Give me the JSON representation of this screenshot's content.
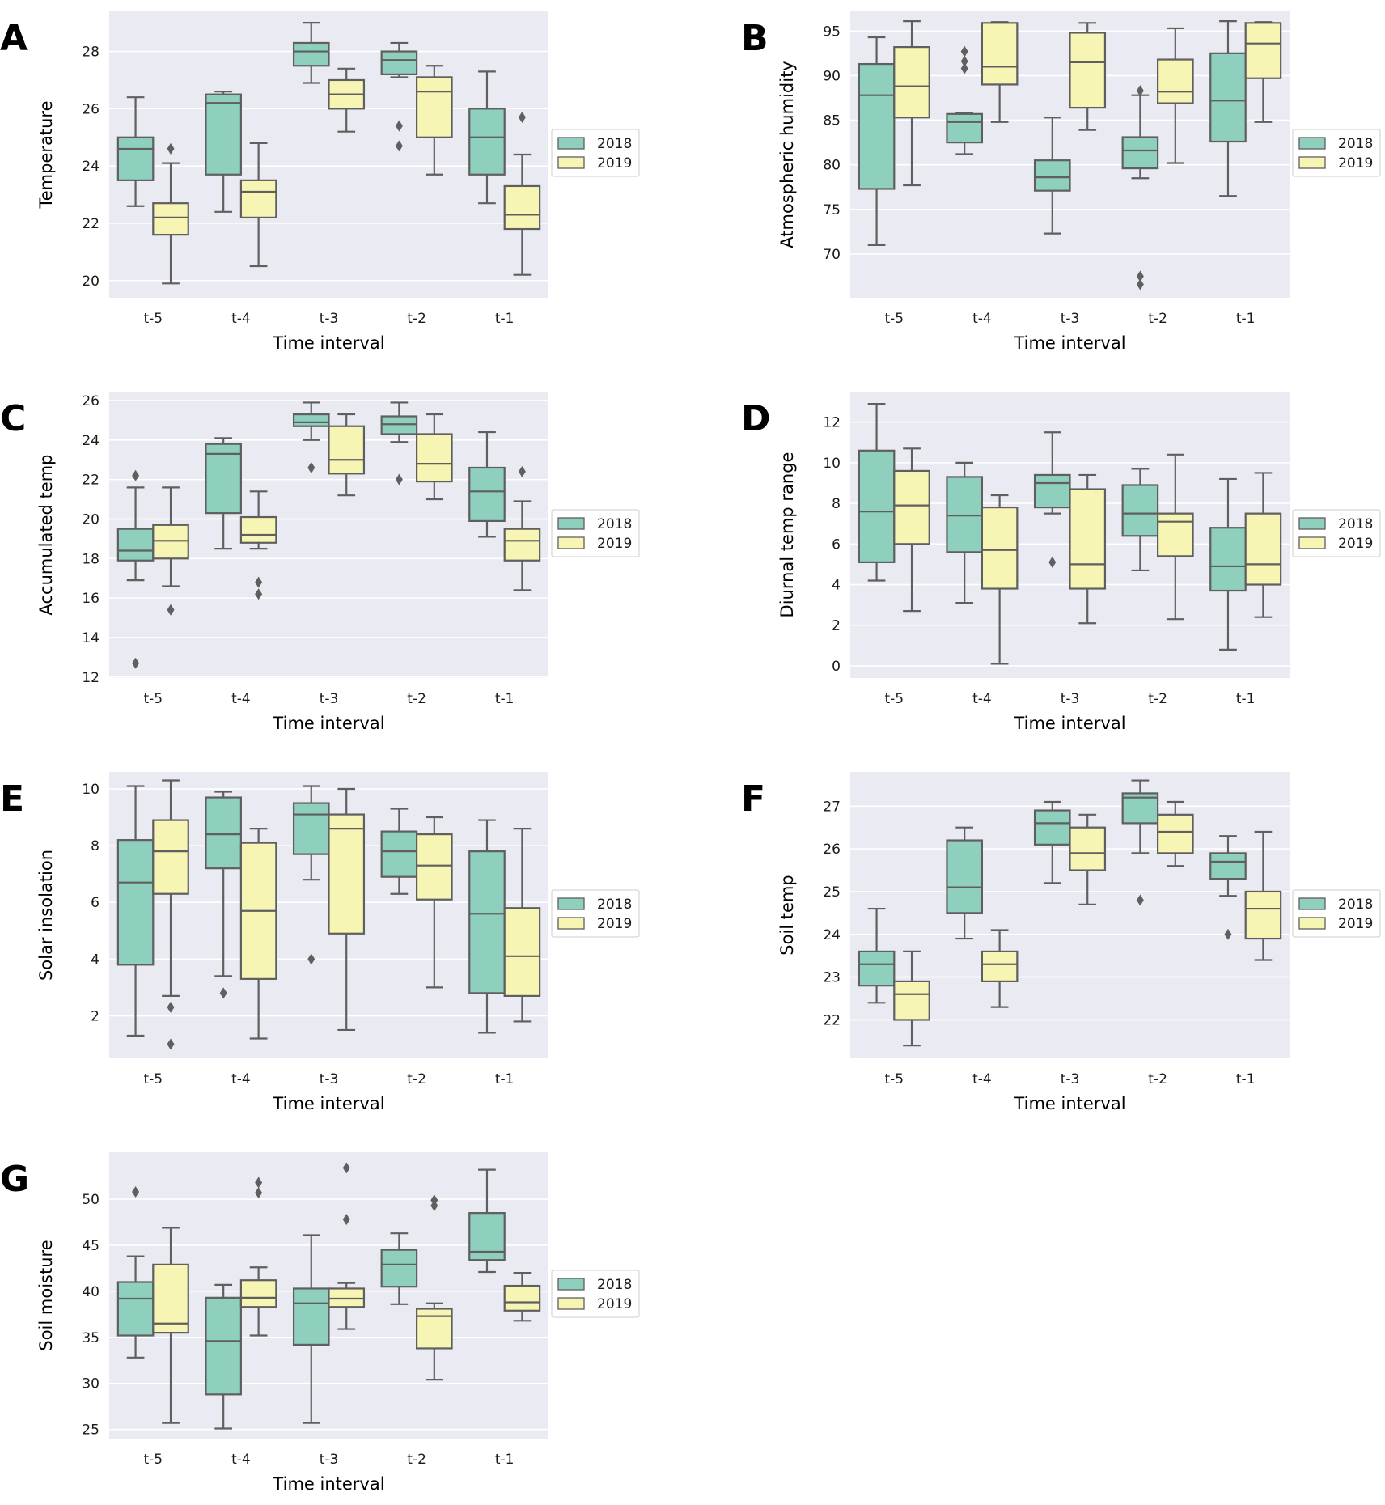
{
  "figure": {
    "palette": {
      "2018": "#8ecfbd",
      "2019": "#f7f5b3",
      "plot_background": "#eaeaf2",
      "gridline": "#ffffff",
      "box_edge": "#5f5f5f"
    },
    "legend": [
      "2018",
      "2019"
    ]
  },
  "chart_data": [
    {
      "panel": "A",
      "type": "box",
      "title": "",
      "xlabel": "Time interval",
      "ylabel": "Temperature",
      "categories": [
        "t-5",
        "t-4",
        "t-3",
        "t-2",
        "t-1"
      ],
      "ylim": [
        19.4,
        29.4
      ],
      "yticks": [
        20,
        22,
        24,
        26,
        28
      ],
      "series": [
        {
          "name": "2018",
          "boxes": [
            {
              "whislo": 22.6,
              "q1": 23.5,
              "med": 24.6,
              "q3": 25.0,
              "whishi": 26.4,
              "fliers": []
            },
            {
              "whislo": 22.4,
              "q1": 23.7,
              "med": 26.2,
              "q3": 26.5,
              "whishi": 26.6,
              "fliers": []
            },
            {
              "whislo": 26.9,
              "q1": 27.5,
              "med": 28.0,
              "q3": 28.3,
              "whishi": 29.0,
              "fliers": []
            },
            {
              "whislo": 27.1,
              "q1": 27.2,
              "med": 27.7,
              "q3": 28.0,
              "whishi": 28.3,
              "fliers": [
                25.4,
                24.7
              ]
            },
            {
              "whislo": 22.7,
              "q1": 23.7,
              "med": 25.0,
              "q3": 26.0,
              "whishi": 27.3,
              "fliers": []
            }
          ]
        },
        {
          "name": "2019",
          "boxes": [
            {
              "whislo": 19.9,
              "q1": 21.6,
              "med": 22.2,
              "q3": 22.7,
              "whishi": 24.1,
              "fliers": [
                24.6
              ]
            },
            {
              "whislo": 20.5,
              "q1": 22.2,
              "med": 23.1,
              "q3": 23.5,
              "whishi": 24.8,
              "fliers": []
            },
            {
              "whislo": 25.2,
              "q1": 26.0,
              "med": 26.5,
              "q3": 27.0,
              "whishi": 27.4,
              "fliers": []
            },
            {
              "whislo": 23.7,
              "q1": 25.0,
              "med": 26.6,
              "q3": 27.1,
              "whishi": 27.5,
              "fliers": []
            },
            {
              "whislo": 20.2,
              "q1": 21.8,
              "med": 22.3,
              "q3": 23.3,
              "whishi": 24.4,
              "fliers": [
                25.7
              ]
            }
          ]
        }
      ]
    },
    {
      "panel": "B",
      "type": "box",
      "title": "",
      "xlabel": "Time interval",
      "ylabel": "Atmospheric humidity",
      "categories": [
        "t-5",
        "t-4",
        "t-3",
        "t-2",
        "t-1"
      ],
      "ylim": [
        65.1,
        97.2
      ],
      "yticks": [
        70,
        75,
        80,
        85,
        90,
        95
      ],
      "series": [
        {
          "name": "2018",
          "boxes": [
            {
              "whislo": 71.0,
              "q1": 77.3,
              "med": 87.8,
              "q3": 91.3,
              "whishi": 94.3,
              "fliers": []
            },
            {
              "whislo": 81.2,
              "q1": 82.5,
              "med": 84.8,
              "q3": 85.7,
              "whishi": 85.8,
              "fliers": [
                92.7,
                91.6,
                90.8
              ]
            },
            {
              "whislo": 72.3,
              "q1": 77.1,
              "med": 78.6,
              "q3": 80.5,
              "whishi": 85.3,
              "fliers": []
            },
            {
              "whislo": 78.5,
              "q1": 79.6,
              "med": 81.6,
              "q3": 83.1,
              "whishi": 87.8,
              "fliers": [
                88.3,
                67.5,
                66.6
              ]
            },
            {
              "whislo": 76.5,
              "q1": 82.6,
              "med": 87.2,
              "q3": 92.5,
              "whishi": 96.1,
              "fliers": []
            }
          ]
        },
        {
          "name": "2019",
          "boxes": [
            {
              "whislo": 77.7,
              "q1": 85.3,
              "med": 88.8,
              "q3": 93.2,
              "whishi": 96.1,
              "fliers": []
            },
            {
              "whislo": 84.8,
              "q1": 89.0,
              "med": 91.0,
              "q3": 95.9,
              "whishi": 96.0,
              "fliers": []
            },
            {
              "whislo": 83.9,
              "q1": 86.4,
              "med": 91.5,
              "q3": 94.8,
              "whishi": 95.9,
              "fliers": []
            },
            {
              "whislo": 80.2,
              "q1": 86.9,
              "med": 88.2,
              "q3": 91.8,
              "whishi": 95.3,
              "fliers": []
            },
            {
              "whislo": 84.8,
              "q1": 89.7,
              "med": 93.6,
              "q3": 95.9,
              "whishi": 96.0,
              "fliers": []
            }
          ]
        }
      ]
    },
    {
      "panel": "C",
      "type": "box",
      "title": "",
      "xlabel": "Time interval",
      "ylabel": "Accumulated temp",
      "categories": [
        "t-5",
        "t-4",
        "t-3",
        "t-2",
        "t-1"
      ],
      "ylim": [
        11.95,
        26.45
      ],
      "yticks": [
        12,
        14,
        16,
        18,
        20,
        22,
        24,
        26
      ],
      "series": [
        {
          "name": "2018",
          "boxes": [
            {
              "whislo": 16.9,
              "q1": 17.9,
              "med": 18.4,
              "q3": 19.5,
              "whishi": 21.6,
              "fliers": [
                22.2,
                12.7
              ]
            },
            {
              "whislo": 18.5,
              "q1": 20.3,
              "med": 23.3,
              "q3": 23.8,
              "whishi": 24.1,
              "fliers": []
            },
            {
              "whislo": 24.0,
              "q1": 24.7,
              "med": 24.9,
              "q3": 25.3,
              "whishi": 25.9,
              "fliers": [
                22.6
              ]
            },
            {
              "whislo": 23.9,
              "q1": 24.3,
              "med": 24.8,
              "q3": 25.2,
              "whishi": 25.9,
              "fliers": [
                22.0
              ]
            },
            {
              "whislo": 19.1,
              "q1": 19.9,
              "med": 21.4,
              "q3": 22.6,
              "whishi": 24.4,
              "fliers": []
            }
          ]
        },
        {
          "name": "2019",
          "boxes": [
            {
              "whislo": 16.6,
              "q1": 18.0,
              "med": 18.9,
              "q3": 19.7,
              "whishi": 21.6,
              "fliers": [
                15.4
              ]
            },
            {
              "whislo": 18.5,
              "q1": 18.8,
              "med": 19.2,
              "q3": 20.1,
              "whishi": 21.4,
              "fliers": [
                16.8,
                16.2
              ]
            },
            {
              "whislo": 21.2,
              "q1": 22.3,
              "med": 23.0,
              "q3": 24.7,
              "whishi": 25.3,
              "fliers": []
            },
            {
              "whislo": 21.0,
              "q1": 21.9,
              "med": 22.8,
              "q3": 24.3,
              "whishi": 25.3,
              "fliers": []
            },
            {
              "whislo": 16.4,
              "q1": 17.9,
              "med": 18.9,
              "q3": 19.5,
              "whishi": 20.9,
              "fliers": [
                22.4
              ]
            }
          ]
        }
      ]
    },
    {
      "panel": "D",
      "type": "box",
      "title": "",
      "xlabel": "Time interval",
      "ylabel": "Diurnal temp range",
      "categories": [
        "t-5",
        "t-4",
        "t-3",
        "t-2",
        "t-1"
      ],
      "ylim": [
        -0.6,
        13.5
      ],
      "yticks": [
        0,
        2,
        4,
        6,
        8,
        10,
        12
      ],
      "series": [
        {
          "name": "2018",
          "boxes": [
            {
              "whislo": 4.2,
              "q1": 5.1,
              "med": 7.6,
              "q3": 10.6,
              "whishi": 12.9,
              "fliers": []
            },
            {
              "whislo": 3.1,
              "q1": 5.6,
              "med": 7.4,
              "q3": 9.3,
              "whishi": 10.0,
              "fliers": []
            },
            {
              "whislo": 7.5,
              "q1": 7.8,
              "med": 9.0,
              "q3": 9.4,
              "whishi": 11.5,
              "fliers": [
                5.1
              ]
            },
            {
              "whislo": 4.7,
              "q1": 6.4,
              "med": 7.5,
              "q3": 8.9,
              "whishi": 9.7,
              "fliers": []
            },
            {
              "whislo": 0.8,
              "q1": 3.7,
              "med": 4.9,
              "q3": 6.8,
              "whishi": 9.2,
              "fliers": []
            }
          ]
        },
        {
          "name": "2019",
          "boxes": [
            {
              "whislo": 2.7,
              "q1": 6.0,
              "med": 7.9,
              "q3": 9.6,
              "whishi": 10.7,
              "fliers": []
            },
            {
              "whislo": 0.1,
              "q1": 3.8,
              "med": 5.7,
              "q3": 7.8,
              "whishi": 8.4,
              "fliers": []
            },
            {
              "whislo": 2.1,
              "q1": 3.8,
              "med": 5.0,
              "q3": 8.7,
              "whishi": 9.4,
              "fliers": []
            },
            {
              "whislo": 2.3,
              "q1": 5.4,
              "med": 7.1,
              "q3": 7.5,
              "whishi": 10.4,
              "fliers": []
            },
            {
              "whislo": 2.4,
              "q1": 4.0,
              "med": 5.0,
              "q3": 7.5,
              "whishi": 9.5,
              "fliers": []
            }
          ]
        }
      ]
    },
    {
      "panel": "E",
      "type": "box",
      "title": "",
      "xlabel": "Time interval",
      "ylabel": "Solar insolation",
      "categories": [
        "t-5",
        "t-4",
        "t-3",
        "t-2",
        "t-1"
      ],
      "ylim": [
        0.5,
        10.6
      ],
      "yticks": [
        2,
        4,
        6,
        8,
        10
      ],
      "series": [
        {
          "name": "2018",
          "boxes": [
            {
              "whislo": 1.3,
              "q1": 3.8,
              "med": 6.7,
              "q3": 8.2,
              "whishi": 10.1,
              "fliers": []
            },
            {
              "whislo": 3.4,
              "q1": 7.2,
              "med": 8.4,
              "q3": 9.7,
              "whishi": 9.9,
              "fliers": [
                2.8
              ]
            },
            {
              "whislo": 6.8,
              "q1": 7.7,
              "med": 9.1,
              "q3": 9.5,
              "whishi": 10.1,
              "fliers": [
                4.0
              ]
            },
            {
              "whislo": 6.3,
              "q1": 6.9,
              "med": 7.8,
              "q3": 8.5,
              "whishi": 9.3,
              "fliers": []
            },
            {
              "whislo": 1.4,
              "q1": 2.8,
              "med": 5.6,
              "q3": 7.8,
              "whishi": 8.9,
              "fliers": []
            }
          ]
        },
        {
          "name": "2019",
          "boxes": [
            {
              "whislo": 2.7,
              "q1": 6.3,
              "med": 7.8,
              "q3": 8.9,
              "whishi": 10.3,
              "fliers": [
                2.3,
                1.0
              ]
            },
            {
              "whislo": 1.2,
              "q1": 3.3,
              "med": 5.7,
              "q3": 8.1,
              "whishi": 8.6,
              "fliers": []
            },
            {
              "whislo": 1.5,
              "q1": 4.9,
              "med": 8.6,
              "q3": 9.1,
              "whishi": 10.0,
              "fliers": []
            },
            {
              "whislo": 3.0,
              "q1": 6.1,
              "med": 7.3,
              "q3": 8.4,
              "whishi": 9.0,
              "fliers": []
            },
            {
              "whislo": 1.8,
              "q1": 2.7,
              "med": 4.1,
              "q3": 5.8,
              "whishi": 8.6,
              "fliers": []
            }
          ]
        }
      ]
    },
    {
      "panel": "F",
      "type": "box",
      "title": "",
      "xlabel": "Time interval",
      "ylabel": "Soil temp",
      "categories": [
        "t-5",
        "t-4",
        "t-3",
        "t-2",
        "t-1"
      ],
      "ylim": [
        21.1,
        27.8
      ],
      "yticks": [
        22,
        23,
        24,
        25,
        26,
        27
      ],
      "series": [
        {
          "name": "2018",
          "boxes": [
            {
              "whislo": 22.4,
              "q1": 22.8,
              "med": 23.3,
              "q3": 23.6,
              "whishi": 24.6,
              "fliers": []
            },
            {
              "whislo": 23.9,
              "q1": 24.5,
              "med": 25.1,
              "q3": 26.2,
              "whishi": 26.5,
              "fliers": []
            },
            {
              "whislo": 25.2,
              "q1": 26.1,
              "med": 26.6,
              "q3": 26.9,
              "whishi": 27.1,
              "fliers": []
            },
            {
              "whislo": 25.9,
              "q1": 26.6,
              "med": 27.2,
              "q3": 27.3,
              "whishi": 27.6,
              "fliers": [
                24.8
              ]
            },
            {
              "whislo": 24.9,
              "q1": 25.3,
              "med": 25.7,
              "q3": 25.9,
              "whishi": 26.3,
              "fliers": [
                24.0
              ]
            }
          ]
        },
        {
          "name": "2019",
          "boxes": [
            {
              "whislo": 21.4,
              "q1": 22.0,
              "med": 22.6,
              "q3": 22.9,
              "whishi": 23.6,
              "fliers": []
            },
            {
              "whislo": 22.3,
              "q1": 22.9,
              "med": 23.3,
              "q3": 23.6,
              "whishi": 24.1,
              "fliers": []
            },
            {
              "whislo": 24.7,
              "q1": 25.5,
              "med": 25.9,
              "q3": 26.5,
              "whishi": 26.8,
              "fliers": []
            },
            {
              "whislo": 25.6,
              "q1": 25.9,
              "med": 26.4,
              "q3": 26.8,
              "whishi": 27.1,
              "fliers": []
            },
            {
              "whislo": 23.4,
              "q1": 23.9,
              "med": 24.6,
              "q3": 25.0,
              "whishi": 26.4,
              "fliers": []
            }
          ]
        }
      ]
    },
    {
      "panel": "G",
      "type": "box",
      "title": "",
      "xlabel": "Time interval",
      "ylabel": "Soil moisture",
      "categories": [
        "t-5",
        "t-4",
        "t-3",
        "t-2",
        "t-1"
      ],
      "ylim": [
        24.0,
        55.1
      ],
      "yticks": [
        25,
        30,
        35,
        40,
        45,
        50
      ],
      "series": [
        {
          "name": "2018",
          "boxes": [
            {
              "whislo": 32.8,
              "q1": 35.2,
              "med": 39.2,
              "q3": 41.0,
              "whishi": 43.8,
              "fliers": [
                50.8
              ]
            },
            {
              "whislo": 25.1,
              "q1": 28.8,
              "med": 34.6,
              "q3": 39.3,
              "whishi": 40.7,
              "fliers": []
            },
            {
              "whislo": 25.7,
              "q1": 34.2,
              "med": 38.7,
              "q3": 40.3,
              "whishi": 46.1,
              "fliers": []
            },
            {
              "whislo": 38.6,
              "q1": 40.5,
              "med": 42.9,
              "q3": 44.5,
              "whishi": 46.3,
              "fliers": []
            },
            {
              "whislo": 42.1,
              "q1": 43.4,
              "med": 44.3,
              "q3": 48.5,
              "whishi": 53.2,
              "fliers": []
            }
          ]
        },
        {
          "name": "2019",
          "boxes": [
            {
              "whislo": 25.7,
              "q1": 35.5,
              "med": 36.5,
              "q3": 42.9,
              "whishi": 46.9,
              "fliers": []
            },
            {
              "whislo": 35.2,
              "q1": 38.3,
              "med": 39.3,
              "q3": 41.2,
              "whishi": 42.6,
              "fliers": [
                51.8,
                50.7
              ]
            },
            {
              "whislo": 35.9,
              "q1": 38.3,
              "med": 39.2,
              "q3": 40.3,
              "whishi": 40.9,
              "fliers": [
                53.4,
                47.8
              ]
            },
            {
              "whislo": 30.4,
              "q1": 33.8,
              "med": 37.3,
              "q3": 38.1,
              "whishi": 38.7,
              "fliers": [
                49.9,
                49.3
              ]
            },
            {
              "whislo": 36.8,
              "q1": 37.9,
              "med": 38.8,
              "q3": 40.6,
              "whishi": 42.0,
              "fliers": []
            }
          ]
        }
      ]
    }
  ]
}
